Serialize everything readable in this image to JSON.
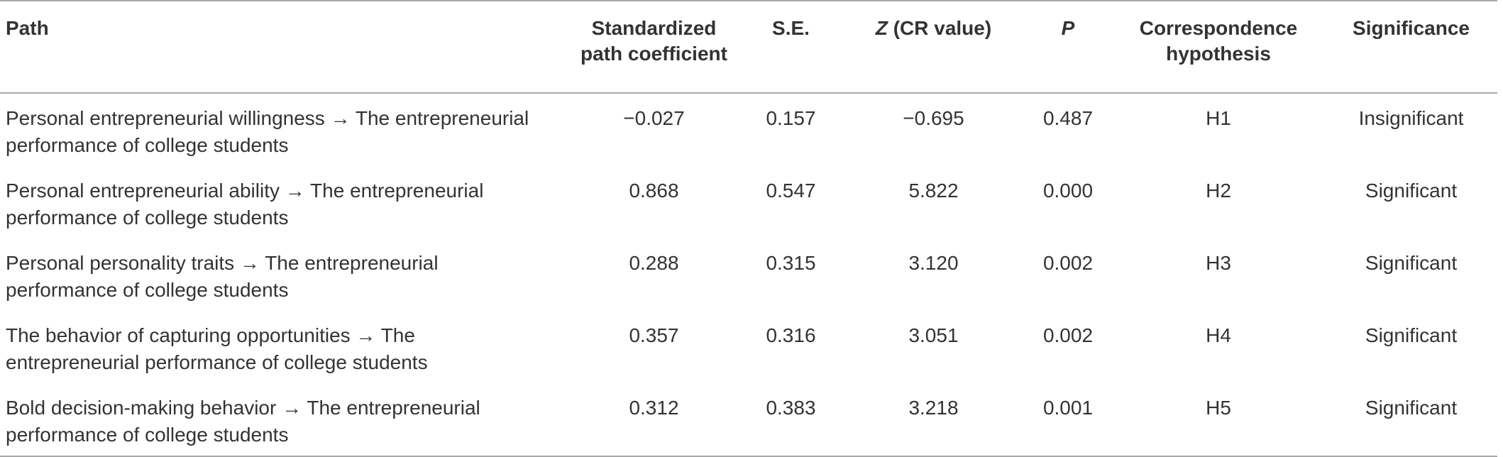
{
  "table": {
    "headers": {
      "path": "Path",
      "coef_line1": "Standardized",
      "coef_line2": "path coefficient",
      "se": "S.E.",
      "z_letter": "Z",
      "z_rest": " (CR value)",
      "p": "P",
      "hyp_line1": "Correspondence",
      "hyp_line2": "hypothesis",
      "significance": "Significance"
    },
    "rows": [
      {
        "path_line1": "Personal entrepreneurial willingness → The entrepreneurial",
        "path_line2": "performance of college students",
        "coef": "−0.027",
        "se": "0.157",
        "z": "−0.695",
        "p": "0.487",
        "hypothesis": "H1",
        "significance": "Insignificant"
      },
      {
        "path_line1": "Personal entrepreneurial ability → The entrepreneurial",
        "path_line2": "performance of college students",
        "coef": "0.868",
        "se": "0.547",
        "z": "5.822",
        "p": "0.000",
        "hypothesis": "H2",
        "significance": "Significant"
      },
      {
        "path_line1": "Personal personality traits → The entrepreneurial",
        "path_line2": "performance of college students",
        "coef": "0.288",
        "se": "0.315",
        "z": "3.120",
        "p": "0.002",
        "hypothesis": "H3",
        "significance": "Significant"
      },
      {
        "path_line1": "The behavior of capturing opportunities → The",
        "path_line2": "entrepreneurial performance of college students",
        "coef": "0.357",
        "se": "0.316",
        "z": "3.051",
        "p": "0.002",
        "hypothesis": "H4",
        "significance": "Significant"
      },
      {
        "path_line1": "Bold decision-making behavior → The entrepreneurial",
        "path_line2": "performance of college students",
        "coef": "0.312",
        "se": "0.383",
        "z": "3.218",
        "p": "0.001",
        "hypothesis": "H5",
        "significance": "Significant"
      }
    ]
  }
}
